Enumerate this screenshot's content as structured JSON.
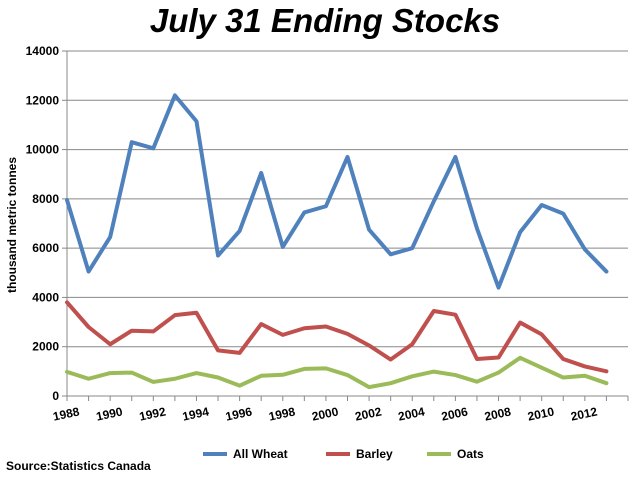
{
  "chart_data": {
    "type": "line",
    "title": "July 31 Ending Stocks",
    "ylabel": "thousand metric tonnes",
    "xlabel": "",
    "ylim": [
      0,
      14000
    ],
    "y_ticks": [
      "0",
      "2000",
      "4000",
      "6000",
      "8000",
      "10000",
      "12000",
      "14000"
    ],
    "x_tick_labels": [
      "1988",
      "1990",
      "1992",
      "1994",
      "1996",
      "1998",
      "2000",
      "2002",
      "2004",
      "2006",
      "2008",
      "2010",
      "2012"
    ],
    "x": [
      1988,
      1989,
      1990,
      1991,
      1992,
      1993,
      1994,
      1995,
      1996,
      1997,
      1998,
      1999,
      2000,
      2001,
      2002,
      2003,
      2004,
      2005,
      2006,
      2007,
      2008,
      2009,
      2010,
      2011,
      2012,
      2013
    ],
    "series": [
      {
        "name": "All Wheat",
        "color": "#4f81bd",
        "values": [
          7950,
          5050,
          6450,
          10300,
          10050,
          12200,
          11150,
          5700,
          6700,
          9050,
          6050,
          7450,
          7700,
          9700,
          6750,
          5750,
          6000,
          7900,
          9700,
          6800,
          4400,
          6650,
          7750,
          7400,
          5950,
          5050
        ]
      },
      {
        "name": "Barley",
        "color": "#c0504d",
        "values": [
          3800,
          2800,
          2100,
          2650,
          2620,
          3280,
          3380,
          1850,
          1750,
          2920,
          2480,
          2750,
          2820,
          2520,
          2050,
          1480,
          2100,
          3450,
          3300,
          1500,
          1560,
          2980,
          2500,
          1500,
          1200,
          1000
        ]
      },
      {
        "name": "Oats",
        "color": "#9bbb59",
        "values": [
          980,
          700,
          930,
          950,
          570,
          700,
          930,
          750,
          420,
          820,
          860,
          1100,
          1120,
          850,
          360,
          520,
          800,
          990,
          850,
          580,
          950,
          1550,
          1150,
          750,
          820,
          520
        ]
      }
    ],
    "grid": "horizontal",
    "legend_position": "bottom"
  },
  "source": "Source:Statistics Canada"
}
